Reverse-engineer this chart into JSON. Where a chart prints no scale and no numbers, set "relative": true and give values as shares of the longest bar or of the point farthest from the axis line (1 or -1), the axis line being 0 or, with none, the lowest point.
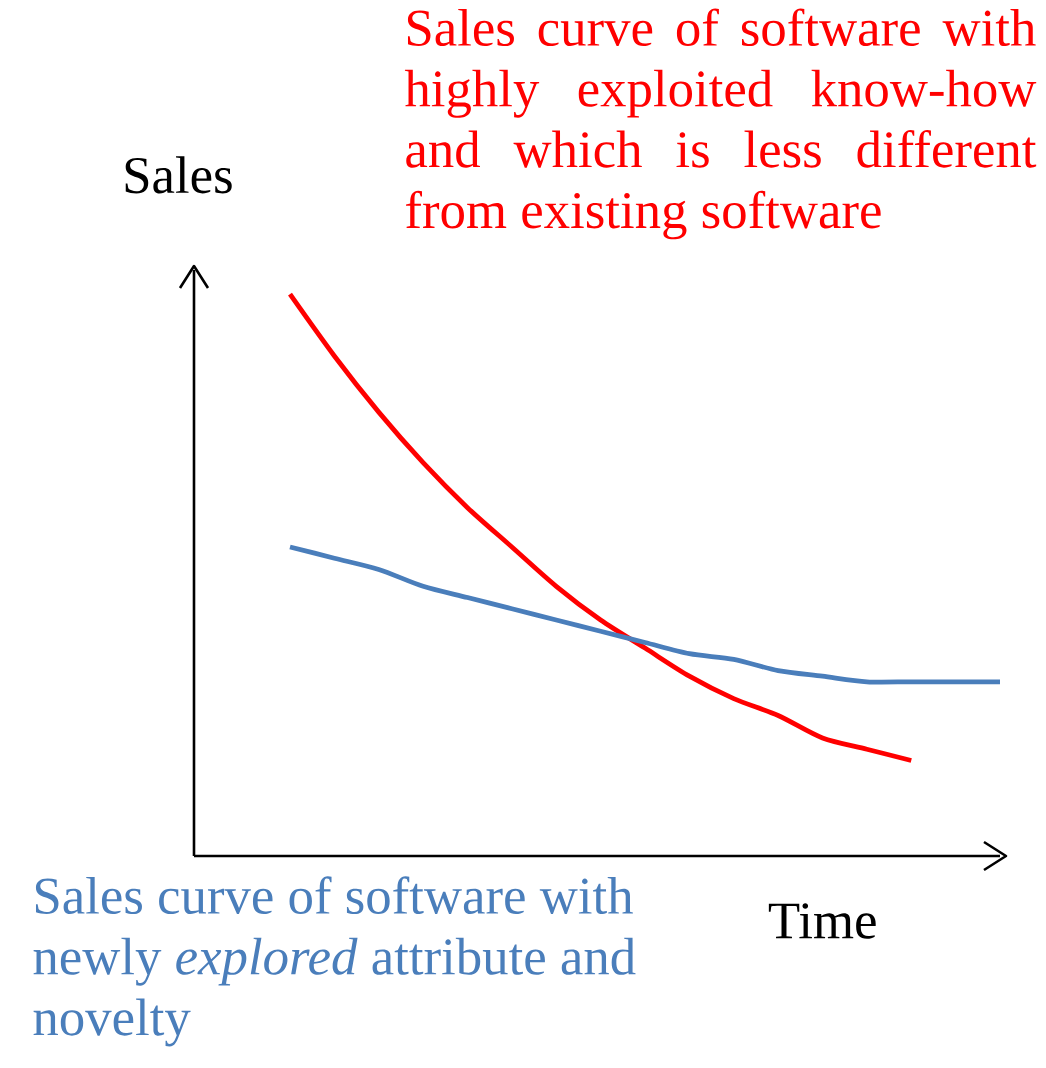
{
  "chart_data": {
    "type": "line",
    "relative": true,
    "xlabel": "Time",
    "ylabel": "Sales",
    "annotations": [
      "Sales curve of software with highly exploited know-how and which is less different from existing software",
      "Sales curve of software with newly *explored* attribute and novelty"
    ],
    "categories": [
      null,
      null,
      null,
      null,
      null,
      null,
      null,
      null,
      null,
      null,
      null,
      null,
      null,
      null,
      null,
      null,
      null
    ],
    "series": [
      {
        "color": "#ff0000",
        "values": [
          1.0,
          0.89,
          0.79,
          0.7,
          0.62,
          0.55,
          0.48,
          0.42,
          0.37,
          0.32,
          0.28,
          0.25,
          0.21,
          0.19,
          0.17,
          null,
          null
        ]
      },
      {
        "color": "#4a7ebb",
        "values": [
          0.55,
          0.53,
          0.51,
          0.48,
          0.46,
          0.44,
          0.42,
          0.4,
          0.38,
          0.36,
          0.35,
          0.33,
          0.32,
          0.31,
          0.31,
          0.31,
          0.31
        ]
      }
    ],
    "marker": "none",
    "line_style": "solid"
  }
}
